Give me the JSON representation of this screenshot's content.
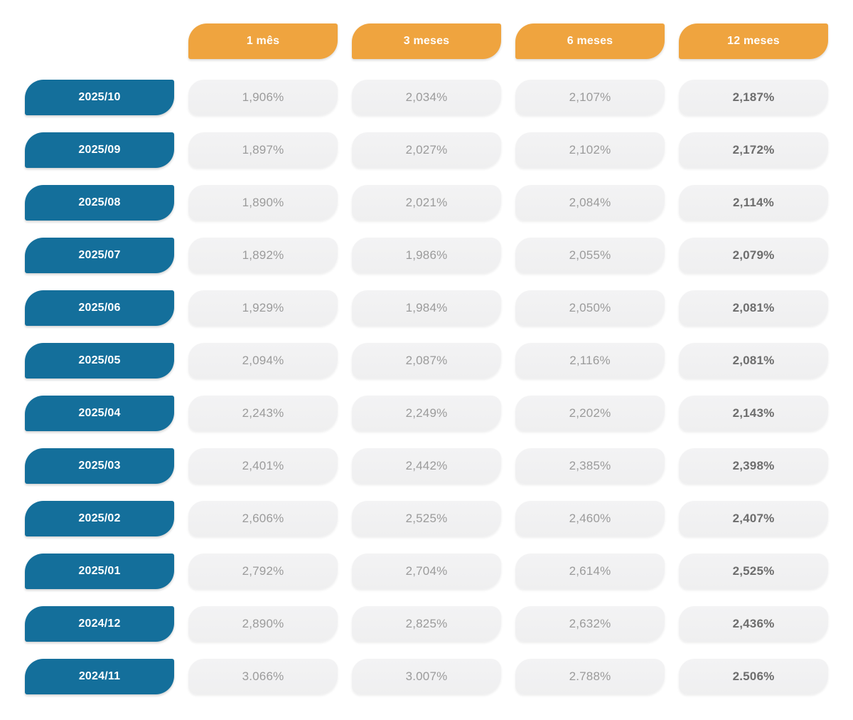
{
  "colors": {
    "header_bg": "#efa43f",
    "period_bg": "#146f9b",
    "cell_bg_top": "#f3f3f4",
    "cell_bg_bottom": "#efeff0",
    "cell_text": "#9b9b9b",
    "cell_text_strong": "#6d6d6d",
    "header_text": "#ffffff"
  },
  "table": {
    "columns": [
      "1 mês",
      "3 meses",
      "6 meses",
      "12 meses"
    ],
    "rows": [
      {
        "period": "2025/10",
        "values": [
          "1,906%",
          "2,034%",
          "2,107%",
          "2,187%"
        ]
      },
      {
        "period": "2025/09",
        "values": [
          "1,897%",
          "2,027%",
          "2,102%",
          "2,172%"
        ]
      },
      {
        "period": "2025/08",
        "values": [
          "1,890%",
          "2,021%",
          "2,084%",
          "2,114%"
        ]
      },
      {
        "period": "2025/07",
        "values": [
          "1,892%",
          "1,986%",
          "2,055%",
          "2,079%"
        ]
      },
      {
        "period": "2025/06",
        "values": [
          "1,929%",
          "1,984%",
          "2,050%",
          "2,081%"
        ]
      },
      {
        "period": "2025/05",
        "values": [
          "2,094%",
          "2,087%",
          "2,116%",
          "2,081%"
        ]
      },
      {
        "period": "2025/04",
        "values": [
          "2,243%",
          "2,249%",
          "2,202%",
          "2,143%"
        ]
      },
      {
        "period": "2025/03",
        "values": [
          "2,401%",
          "2,442%",
          "2,385%",
          "2,398%"
        ]
      },
      {
        "period": "2025/02",
        "values": [
          "2,606%",
          "2,525%",
          "2,460%",
          "2,407%"
        ]
      },
      {
        "period": "2025/01",
        "values": [
          "2,792%",
          "2,704%",
          "2,614%",
          "2,525%"
        ]
      },
      {
        "period": "2024/12",
        "values": [
          "2,890%",
          "2,825%",
          "2,632%",
          "2,436%"
        ]
      },
      {
        "period": "2024/11",
        "values": [
          "3.066%",
          "3.007%",
          "2.788%",
          "2.506%"
        ]
      }
    ]
  },
  "chart_data": {
    "type": "table",
    "columns": [
      "1 mês",
      "3 meses",
      "6 meses",
      "12 meses"
    ],
    "row_labels": [
      "2025/10",
      "2025/09",
      "2025/08",
      "2025/07",
      "2025/06",
      "2025/05",
      "2025/04",
      "2025/03",
      "2025/02",
      "2025/01",
      "2024/12",
      "2024/11"
    ],
    "rows": [
      [
        1.906,
        2.034,
        2.107,
        2.187
      ],
      [
        1.897,
        2.027,
        2.102,
        2.172
      ],
      [
        1.89,
        2.021,
        2.084,
        2.114
      ],
      [
        1.892,
        1.986,
        2.055,
        2.079
      ],
      [
        1.929,
        1.984,
        2.05,
        2.081
      ],
      [
        2.094,
        2.087,
        2.116,
        2.081
      ],
      [
        2.243,
        2.249,
        2.202,
        2.143
      ],
      [
        2.401,
        2.442,
        2.385,
        2.398
      ],
      [
        2.606,
        2.525,
        2.46,
        2.407
      ],
      [
        2.792,
        2.704,
        2.614,
        2.525
      ],
      [
        2.89,
        2.825,
        2.632,
        2.436
      ],
      [
        3.066,
        3.007,
        2.788,
        2.506
      ]
    ],
    "unit": "%"
  }
}
